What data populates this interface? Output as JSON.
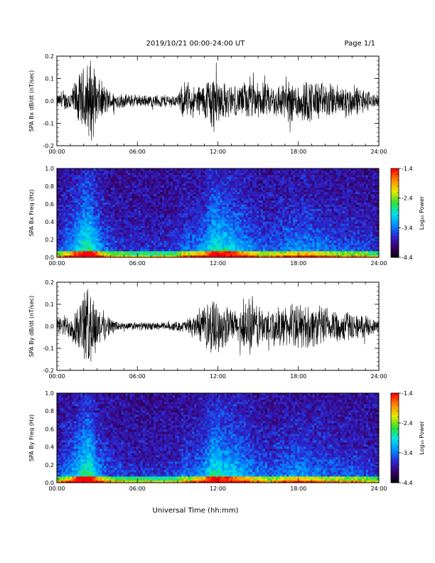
{
  "header": {
    "title": "2019/10/21  00:00-24:00 UT",
    "page": "Page 1/1"
  },
  "footer": {
    "xlabel": "Universal Time (hh:mm)"
  },
  "colors": {
    "waveform": "#000000",
    "colormap": [
      "#000000",
      "#3b006b",
      "#2a2ad8",
      "#0090ff",
      "#00e6e6",
      "#30e030",
      "#e8e800",
      "#ff8a00",
      "#ff0000"
    ]
  },
  "chart_data": [
    {
      "type": "line",
      "title": "",
      "ylabel": "SPA Bx dB/dt (nT/sec)",
      "xlabel": "",
      "xlim": [
        "00:00",
        "24:00"
      ],
      "ylim": [
        -0.2,
        0.2
      ],
      "xticks": [
        "00:00",
        "06:00",
        "12:00",
        "18:00",
        "24:00"
      ],
      "yticks": [
        "-0.2",
        "-0.1",
        "0.0",
        "0.1",
        "0.2"
      ],
      "series": [
        {
          "x_hours": [
            0,
            1,
            2,
            2.5,
            3,
            4,
            5,
            6,
            7,
            8,
            9,
            9.5,
            10,
            11,
            11.5,
            12,
            12.5,
            13,
            13.5,
            14,
            15,
            16,
            17,
            18,
            19,
            20,
            21,
            22,
            23,
            24
          ],
          "amplitude": [
            0.03,
            0.06,
            0.17,
            0.22,
            0.12,
            0.05,
            0.035,
            0.03,
            0.03,
            0.035,
            0.03,
            0.1,
            0.07,
            0.09,
            0.16,
            0.13,
            0.09,
            0.08,
            0.07,
            0.1,
            0.09,
            0.08,
            0.1,
            0.11,
            0.11,
            0.09,
            0.08,
            0.08,
            0.06,
            0.025
          ]
        }
      ]
    },
    {
      "type": "heatmap",
      "title": "",
      "ylabel": "SPA Bx Freq (Hz)",
      "xlabel": "",
      "xlim": [
        "00:00",
        "24:00"
      ],
      "ylim": [
        0.0,
        1.0
      ],
      "xticks": [
        "00:00",
        "06:00",
        "12:00",
        "18:00",
        "24:00"
      ],
      "yticks": [
        "0.0",
        "0.2",
        "0.4",
        "0.6",
        "0.8",
        "1.0"
      ],
      "colorbar": {
        "label": "Log₁₀ Power",
        "ticks": [
          "-1.4",
          "-2.4",
          "-3.4",
          "-4.4"
        ],
        "range": [
          -4.4,
          -1.4
        ]
      },
      "activity_hours": [
        0,
        1,
        2,
        2.5,
        3,
        4,
        5,
        6,
        7,
        8,
        9,
        9.5,
        10,
        11,
        11.5,
        12,
        12.5,
        13,
        13.5,
        14,
        15,
        16,
        17,
        18,
        19,
        20,
        21,
        22,
        23,
        24
      ],
      "activity_level": [
        0.3,
        0.5,
        0.85,
        0.9,
        0.6,
        0.3,
        0.25,
        0.2,
        0.2,
        0.22,
        0.25,
        0.45,
        0.4,
        0.55,
        0.8,
        0.8,
        0.75,
        0.7,
        0.65,
        0.55,
        0.4,
        0.35,
        0.45,
        0.5,
        0.5,
        0.4,
        0.35,
        0.35,
        0.3,
        0.2
      ]
    },
    {
      "type": "line",
      "title": "",
      "ylabel": "SPA By dB/dt (nT/sec)",
      "xlabel": "",
      "xlim": [
        "00:00",
        "24:00"
      ],
      "ylim": [
        -0.2,
        0.2
      ],
      "xticks": [
        "00:00",
        "06:00",
        "12:00",
        "18:00",
        "24:00"
      ],
      "yticks": [
        "-0.2",
        "-0.1",
        "0.0",
        "0.1",
        "0.2"
      ],
      "series": [
        {
          "x_hours": [
            0,
            1,
            2,
            2.5,
            3,
            4,
            5,
            6,
            7,
            8,
            9,
            9.5,
            10,
            11,
            11.5,
            12,
            12.5,
            13,
            13.5,
            14,
            14.5,
            15,
            16,
            17,
            18,
            19,
            20,
            21,
            22,
            23,
            24
          ],
          "amplitude": [
            0.04,
            0.07,
            0.17,
            0.22,
            0.11,
            0.04,
            0.02,
            0.02,
            0.02,
            0.02,
            0.025,
            0.03,
            0.05,
            0.09,
            0.15,
            0.12,
            0.11,
            0.09,
            0.08,
            0.12,
            0.16,
            0.11,
            0.09,
            0.1,
            0.11,
            0.11,
            0.1,
            0.09,
            0.07,
            0.05,
            0.03
          ]
        }
      ]
    },
    {
      "type": "heatmap",
      "title": "",
      "ylabel": "SPA By Freq (Hz)",
      "xlabel": "",
      "xlim": [
        "00:00",
        "24:00"
      ],
      "ylim": [
        0.0,
        1.0
      ],
      "xticks": [
        "00:00",
        "06:00",
        "12:00",
        "18:00",
        "24:00"
      ],
      "yticks": [
        "0.0",
        "0.2",
        "0.4",
        "0.6",
        "0.8",
        "1.0"
      ],
      "colorbar": {
        "label": "Log₁₀ Power",
        "ticks": [
          "-1.4",
          "-2.4",
          "-3.4",
          "-4.4"
        ],
        "range": [
          -4.4,
          -1.4
        ]
      },
      "activity_hours": [
        0,
        1,
        2,
        2.5,
        3,
        4,
        5,
        6,
        7,
        8,
        9,
        9.5,
        10,
        11,
        11.5,
        12,
        12.5,
        13,
        13.5,
        14,
        15,
        16,
        17,
        18,
        19,
        20,
        21,
        22,
        23,
        24
      ],
      "activity_level": [
        0.3,
        0.5,
        0.85,
        0.9,
        0.55,
        0.3,
        0.25,
        0.2,
        0.2,
        0.22,
        0.25,
        0.4,
        0.4,
        0.55,
        0.8,
        0.8,
        0.75,
        0.7,
        0.65,
        0.55,
        0.4,
        0.35,
        0.45,
        0.5,
        0.45,
        0.4,
        0.35,
        0.35,
        0.3,
        0.2
      ]
    }
  ]
}
